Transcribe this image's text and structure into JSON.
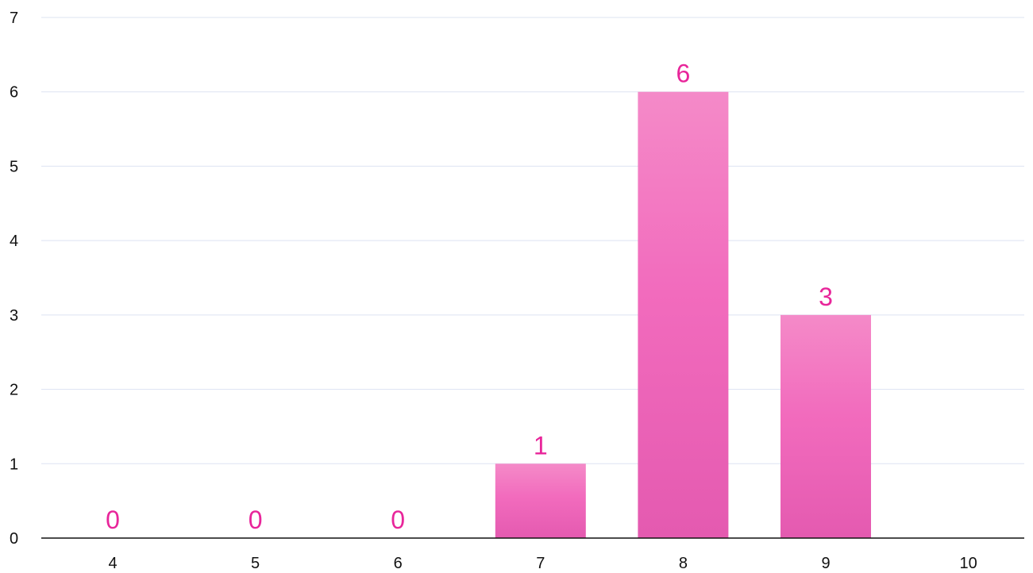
{
  "chart_data": {
    "type": "bar",
    "categories": [
      "4",
      "5",
      "6",
      "7",
      "8",
      "9",
      "10"
    ],
    "values": [
      0,
      0,
      0,
      1,
      6,
      3,
      null
    ],
    "data_labels": [
      "0",
      "0",
      "0",
      "1",
      "6",
      "3",
      ""
    ],
    "title": "",
    "xlabel": "",
    "ylabel": "",
    "ylim": [
      0,
      7
    ],
    "yticks": [
      "0",
      "1",
      "2",
      "3",
      "4",
      "5",
      "6",
      "7"
    ],
    "grid": true,
    "legend": "none"
  },
  "colors": {
    "bar_top": "#f48ac8",
    "bar_mid": "#f26bbd",
    "bar_bottom": "#e45ab0",
    "label": "#e8259a",
    "grid": "#dde3f2",
    "axis": "#111111"
  }
}
